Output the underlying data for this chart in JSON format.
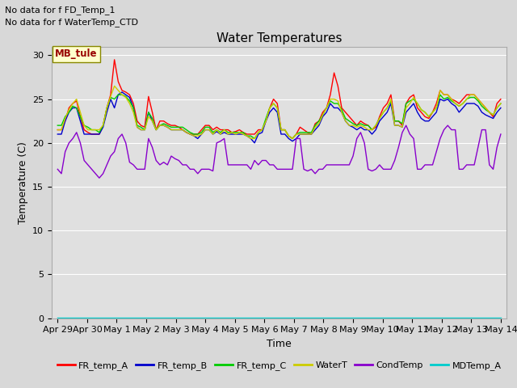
{
  "title": "Water Temperatures",
  "xlabel": "Time",
  "ylabel": "Temperature (C)",
  "ylim": [
    0,
    31
  ],
  "yticks": [
    0,
    5,
    10,
    15,
    20,
    25,
    30
  ],
  "fig_bg_color": "#d8d8d8",
  "plot_bg_color": "#e0e0e0",
  "annotations": [
    "No data for f FD_Temp_1",
    "No data for f WaterTemp_CTD"
  ],
  "mb_tule_label": "MB_tule",
  "legend_entries": [
    "FR_temp_A",
    "FR_temp_B",
    "FR_temp_C",
    "WaterT",
    "CondTemp",
    "MDTemp_A"
  ],
  "legend_colors": [
    "#ff0000",
    "#0000cc",
    "#00cc00",
    "#cccc00",
    "#8800cc",
    "#00cccc"
  ],
  "x_labels": [
    "Apr 29",
    "Apr 30",
    "May 1",
    "May 2",
    "May 3",
    "May 4",
    "May 5",
    "May 6",
    "May 7",
    "May 8",
    "May 9",
    "May 10",
    "May 11",
    "May 12",
    "May 13",
    "May 14"
  ],
  "num_points": 200,
  "FR_temp_A": [
    21.5,
    21.5,
    22.5,
    24.0,
    24.5,
    24.8,
    23.0,
    21.5,
    21.2,
    21.0,
    21.0,
    21.0,
    22.0,
    24.0,
    25.5,
    29.5,
    27.0,
    26.0,
    25.8,
    25.5,
    24.5,
    22.5,
    22.0,
    21.8,
    25.3,
    23.5,
    21.5,
    22.5,
    22.5,
    22.2,
    22.0,
    22.0,
    21.8,
    21.5,
    21.2,
    21.0,
    21.0,
    21.0,
    21.5,
    22.0,
    22.0,
    21.5,
    21.8,
    21.5,
    21.5,
    21.5,
    21.2,
    21.3,
    21.5,
    21.2,
    21.0,
    21.0,
    21.0,
    21.5,
    21.5,
    22.5,
    24.0,
    25.0,
    24.5,
    21.5,
    21.5,
    20.8,
    20.5,
    21.0,
    21.8,
    21.5,
    21.2,
    21.0,
    22.2,
    22.5,
    23.5,
    24.0,
    25.5,
    28.0,
    26.5,
    24.0,
    23.5,
    23.0,
    22.5,
    22.0,
    22.5,
    22.2,
    22.0,
    21.5,
    21.8,
    23.0,
    24.0,
    24.5,
    25.5,
    22.5,
    22.5,
    22.0,
    24.5,
    25.2,
    25.5,
    24.0,
    23.5,
    23.0,
    22.8,
    23.5,
    24.5,
    26.0,
    25.5,
    25.5,
    25.0,
    24.8,
    24.5,
    25.0,
    25.5,
    25.5,
    25.5,
    25.0,
    24.5,
    24.0,
    23.5,
    23.0,
    24.5,
    25.0
  ],
  "FR_temp_B": [
    21.0,
    21.0,
    22.5,
    23.5,
    24.0,
    24.0,
    22.5,
    21.0,
    21.0,
    21.0,
    21.0,
    21.0,
    21.8,
    23.5,
    25.0,
    24.0,
    25.5,
    25.8,
    25.5,
    25.2,
    24.0,
    21.8,
    21.5,
    21.5,
    23.5,
    22.5,
    21.5,
    22.0,
    22.0,
    21.8,
    21.5,
    21.5,
    21.5,
    21.5,
    21.2,
    21.0,
    20.8,
    20.5,
    21.0,
    21.5,
    21.5,
    21.0,
    21.3,
    21.0,
    21.2,
    21.0,
    21.0,
    21.0,
    21.0,
    21.0,
    20.8,
    20.5,
    20.0,
    21.0,
    21.2,
    22.5,
    23.5,
    24.0,
    23.5,
    21.0,
    21.0,
    20.5,
    20.2,
    20.5,
    21.0,
    21.0,
    21.0,
    21.0,
    21.5,
    22.0,
    23.0,
    23.5,
    24.5,
    24.0,
    24.0,
    23.5,
    22.5,
    22.0,
    21.8,
    21.5,
    21.8,
    21.5,
    21.5,
    21.0,
    21.5,
    22.5,
    23.0,
    23.5,
    24.5,
    22.0,
    22.0,
    21.8,
    23.5,
    24.0,
    24.5,
    23.5,
    22.8,
    22.5,
    22.5,
    23.0,
    23.5,
    25.0,
    24.8,
    25.0,
    24.5,
    24.2,
    23.5,
    24.0,
    24.5,
    24.5,
    24.5,
    24.2,
    23.5,
    23.2,
    23.0,
    22.8,
    23.5,
    24.0
  ],
  "FR_temp_C": [
    22.0,
    22.0,
    23.0,
    23.5,
    24.2,
    24.0,
    23.0,
    22.0,
    21.8,
    21.5,
    21.5,
    21.2,
    22.0,
    24.0,
    25.2,
    25.0,
    25.5,
    25.5,
    25.3,
    24.8,
    24.0,
    22.0,
    21.8,
    21.5,
    23.5,
    22.8,
    21.5,
    22.0,
    22.2,
    22.0,
    21.8,
    21.8,
    21.8,
    21.8,
    21.5,
    21.2,
    21.0,
    21.0,
    21.2,
    21.8,
    21.8,
    21.2,
    21.5,
    21.2,
    21.5,
    21.2,
    21.2,
    21.2,
    21.2,
    21.2,
    20.8,
    20.8,
    20.5,
    21.2,
    21.5,
    22.8,
    24.0,
    24.5,
    24.0,
    21.5,
    21.5,
    20.8,
    20.5,
    21.0,
    21.2,
    21.2,
    21.2,
    21.2,
    22.0,
    22.5,
    23.2,
    24.0,
    24.8,
    24.5,
    24.5,
    23.8,
    22.8,
    22.5,
    22.2,
    22.0,
    22.2,
    22.0,
    22.0,
    21.5,
    22.0,
    22.8,
    23.5,
    24.0,
    24.8,
    22.5,
    22.5,
    22.2,
    24.5,
    24.8,
    25.0,
    24.5,
    23.8,
    23.5,
    23.0,
    23.5,
    24.0,
    25.5,
    25.0,
    25.2,
    24.8,
    24.5,
    24.2,
    24.5,
    25.0,
    25.2,
    25.2,
    24.8,
    24.2,
    23.8,
    23.5,
    23.2,
    24.0,
    24.5
  ],
  "WaterT": [
    21.5,
    21.5,
    22.8,
    23.8,
    24.5,
    25.0,
    23.5,
    22.0,
    21.5,
    21.5,
    21.5,
    21.5,
    22.0,
    24.0,
    25.3,
    26.5,
    26.0,
    25.5,
    25.2,
    24.5,
    23.5,
    21.8,
    21.5,
    21.5,
    23.0,
    22.5,
    21.5,
    22.0,
    22.0,
    21.8,
    21.5,
    21.5,
    21.5,
    21.5,
    21.2,
    21.0,
    20.8,
    20.8,
    21.0,
    21.5,
    21.5,
    21.0,
    21.5,
    21.0,
    21.5,
    21.0,
    21.2,
    21.0,
    21.2,
    21.0,
    20.8,
    20.5,
    20.5,
    21.2,
    21.5,
    22.5,
    24.0,
    24.5,
    24.0,
    21.5,
    21.5,
    20.8,
    20.5,
    21.0,
    21.0,
    21.0,
    21.0,
    21.0,
    21.8,
    22.2,
    23.2,
    24.0,
    25.0,
    25.0,
    24.8,
    23.5,
    22.5,
    22.0,
    22.0,
    21.8,
    22.0,
    21.8,
    21.5,
    21.5,
    22.0,
    22.8,
    23.5,
    24.0,
    25.0,
    22.0,
    22.0,
    21.8,
    24.0,
    24.5,
    25.2,
    24.5,
    23.8,
    23.5,
    23.0,
    23.5,
    24.0,
    26.0,
    25.5,
    25.5,
    25.0,
    24.5,
    24.2,
    24.5,
    25.0,
    25.5,
    25.5,
    25.0,
    24.5,
    24.0,
    23.5,
    23.2,
    24.0,
    24.5
  ],
  "CondTemp": [
    17.0,
    16.5,
    19.0,
    20.0,
    20.5,
    21.2,
    20.0,
    18.0,
    17.5,
    17.0,
    16.5,
    16.0,
    16.5,
    17.5,
    18.5,
    19.0,
    20.5,
    21.0,
    20.0,
    17.8,
    17.5,
    17.0,
    17.0,
    17.0,
    20.5,
    19.5,
    18.0,
    17.5,
    17.8,
    17.5,
    18.5,
    18.2,
    18.0,
    17.5,
    17.5,
    17.0,
    17.0,
    16.5,
    17.0,
    17.0,
    17.0,
    16.8,
    20.0,
    20.2,
    20.5,
    17.5,
    17.5,
    17.5,
    17.5,
    17.5,
    17.5,
    17.0,
    18.0,
    17.5,
    18.0,
    18.0,
    17.5,
    17.5,
    17.0,
    17.0,
    17.0,
    17.0,
    17.0,
    20.5,
    20.5,
    17.0,
    16.8,
    17.0,
    16.5,
    17.0,
    17.0,
    17.5,
    17.5,
    17.5,
    17.5,
    17.5,
    17.5,
    17.5,
    18.5,
    20.5,
    21.2,
    20.0,
    17.0,
    16.8,
    17.0,
    17.5,
    17.0,
    17.0,
    17.0,
    18.0,
    19.5,
    21.2,
    22.0,
    21.0,
    20.5,
    17.0,
    17.0,
    17.5,
    17.5,
    17.5,
    19.0,
    20.5,
    21.5,
    22.0,
    21.5,
    21.5,
    17.0,
    17.0,
    17.5,
    17.5,
    17.5,
    19.5,
    21.5,
    21.5,
    17.5,
    17.0,
    19.5,
    21.0
  ],
  "MDTemp_A_val": 0.1
}
